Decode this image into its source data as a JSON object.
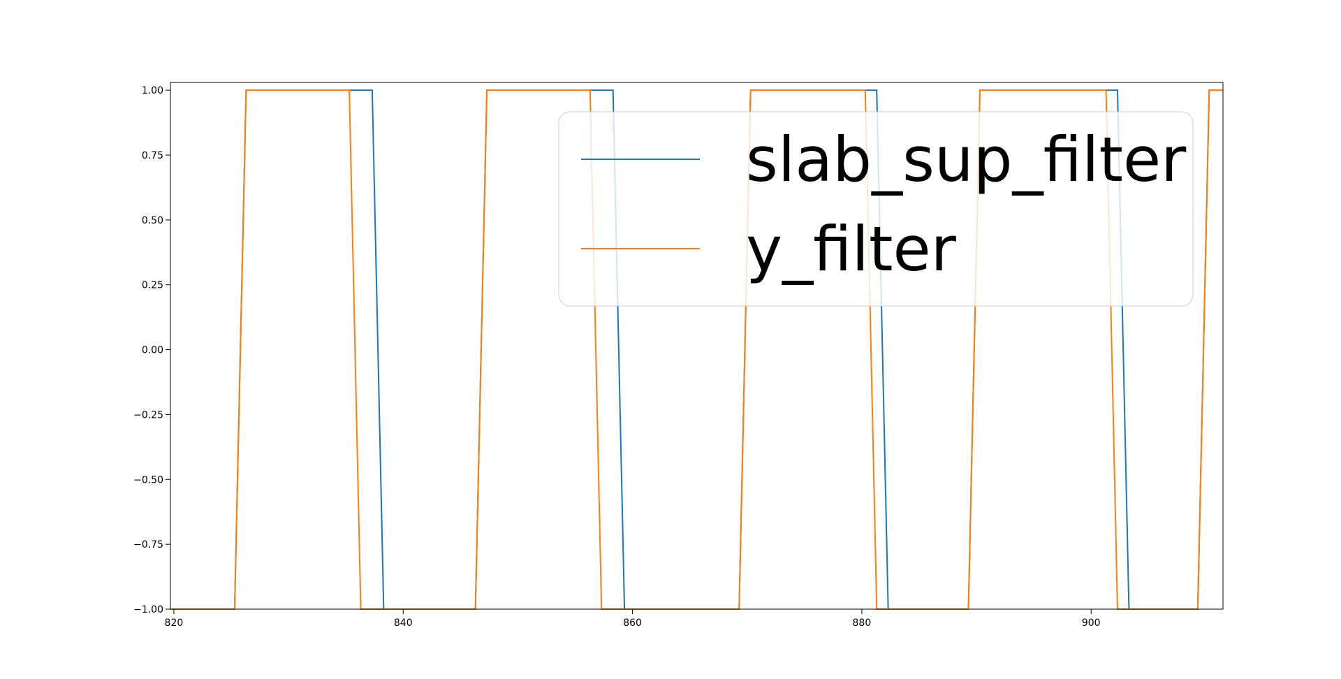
{
  "chart_data": {
    "type": "line",
    "title": "",
    "xlabel": "",
    "ylabel": "",
    "xlim": [
      819.7,
      911.5
    ],
    "ylim": [
      -1.0,
      1.03
    ],
    "x_ticks": [
      820,
      840,
      860,
      880,
      900
    ],
    "x_tick_labels": [
      "820",
      "840",
      "860",
      "880",
      "900"
    ],
    "y_ticks": [
      1.0,
      0.75,
      0.5,
      0.25,
      0.0,
      -0.25,
      -0.5,
      -0.75,
      -1.0
    ],
    "y_tick_labels": [
      "1.00",
      "0.75",
      "0.50",
      "0.25",
      "0.00",
      "−0.25",
      "−0.50",
      "−0.75",
      "−1.00"
    ],
    "grid": false,
    "legend_position": "top-right",
    "series": [
      {
        "name": "slab_sup_filter",
        "color": "#1f77b4",
        "x": [
          819.7,
          825.3,
          826.3,
          837.3,
          838.3,
          846.3,
          847.3,
          858.3,
          859.3,
          869.3,
          870.3,
          881.3,
          882.3,
          889.3,
          890.3,
          902.3,
          903.3,
          909.3,
          910.3,
          911.5
        ],
        "y": [
          -1,
          -1,
          1,
          1,
          -1,
          -1,
          1,
          1,
          -1,
          -1,
          1,
          1,
          -1,
          -1,
          1,
          1,
          -1,
          -1,
          1,
          1
        ]
      },
      {
        "name": "y_filter",
        "color": "#ff7f0e",
        "x": [
          819.7,
          825.3,
          826.3,
          835.3,
          836.3,
          846.3,
          847.3,
          856.3,
          857.3,
          869.3,
          870.3,
          880.3,
          881.3,
          889.3,
          890.3,
          901.3,
          902.3,
          909.3,
          910.3,
          911.5
        ],
        "y": [
          -1,
          -1,
          1,
          1,
          -1,
          -1,
          1,
          1,
          -1,
          -1,
          1,
          1,
          -1,
          -1,
          1,
          1,
          -1,
          -1,
          1,
          1
        ]
      }
    ]
  }
}
